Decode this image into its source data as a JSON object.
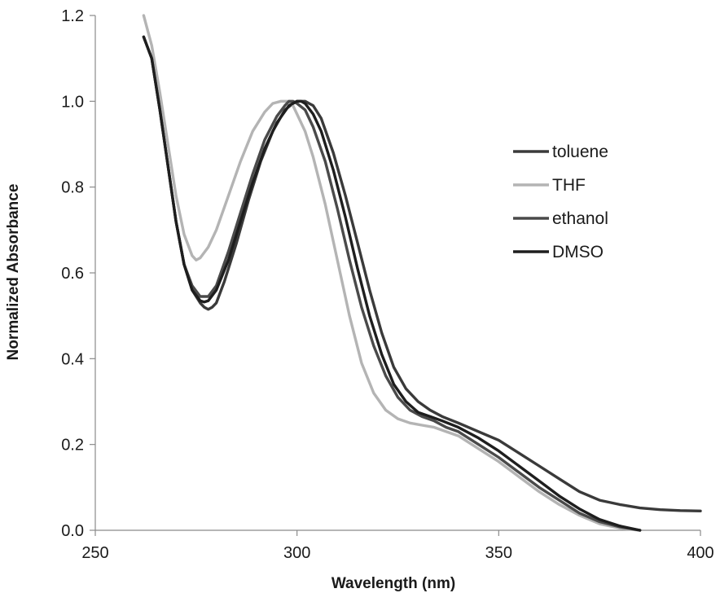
{
  "chart_data": {
    "type": "line",
    "xlabel": "Wavelength (nm)",
    "ylabel": "Normalized Absorbance",
    "xlim": [
      250,
      400
    ],
    "ylim": [
      0.0,
      1.2
    ],
    "x_ticks": [
      "250",
      "300",
      "350",
      "400"
    ],
    "y_ticks": [
      "0.0",
      "0.2",
      "0.4",
      "0.6",
      "0.8",
      "1.0",
      "1.2"
    ],
    "grid": false,
    "legend_position": "right",
    "series": [
      {
        "name": "toluene",
        "color": "#3a3a3a",
        "x": [
          262,
          264,
          266,
          268,
          270,
          272,
          274,
          276,
          277,
          278,
          279,
          280,
          282,
          285,
          288,
          291,
          294,
          297,
          299,
          300,
          301,
          302,
          303,
          304,
          306,
          309,
          312,
          315,
          318,
          321,
          324,
          327,
          330,
          333,
          336,
          340,
          345,
          350,
          355,
          360,
          365,
          370,
          375,
          380,
          385,
          390,
          395,
          400
        ],
        "y": [
          1.15,
          1.1,
          0.98,
          0.85,
          0.72,
          0.62,
          0.56,
          0.53,
          0.52,
          0.515,
          0.52,
          0.53,
          0.58,
          0.67,
          0.77,
          0.86,
          0.93,
          0.98,
          0.995,
          1.0,
          1.0,
          1.0,
          0.995,
          0.99,
          0.96,
          0.88,
          0.78,
          0.67,
          0.56,
          0.46,
          0.38,
          0.33,
          0.3,
          0.28,
          0.265,
          0.25,
          0.23,
          0.21,
          0.18,
          0.15,
          0.12,
          0.09,
          0.07,
          0.06,
          0.052,
          0.048,
          0.046,
          0.045
        ]
      },
      {
        "name": "THF",
        "color": "#b4b4b4",
        "x": [
          262,
          264,
          266,
          268,
          270,
          272,
          274,
          275,
          276,
          278,
          280,
          283,
          286,
          289,
          292,
          294,
          296,
          297,
          298,
          299,
          300,
          302,
          304,
          307,
          310,
          313,
          316,
          319,
          322,
          325,
          328,
          331,
          334,
          337,
          340,
          345,
          350,
          355,
          360,
          365,
          370,
          375,
          380,
          385
        ],
        "y": [
          1.2,
          1.13,
          1.02,
          0.9,
          0.78,
          0.69,
          0.64,
          0.63,
          0.635,
          0.66,
          0.7,
          0.78,
          0.86,
          0.93,
          0.975,
          0.995,
          1.0,
          1.0,
          1.0,
          0.99,
          0.97,
          0.93,
          0.87,
          0.76,
          0.63,
          0.5,
          0.39,
          0.32,
          0.28,
          0.26,
          0.25,
          0.245,
          0.24,
          0.23,
          0.22,
          0.19,
          0.16,
          0.125,
          0.09,
          0.06,
          0.035,
          0.015,
          0.005,
          0.0
        ]
      },
      {
        "name": "ethanol",
        "color": "#4a4a4a",
        "x": [
          262,
          264,
          266,
          268,
          270,
          272,
          274,
          276,
          278,
          280,
          283,
          286,
          289,
          292,
          295,
          297,
          298,
          299,
          300,
          302,
          304,
          307,
          310,
          313,
          316,
          319,
          322,
          325,
          328,
          331,
          334,
          337,
          340,
          345,
          350,
          355,
          360,
          365,
          370,
          375,
          380,
          385
        ],
        "y": [
          1.15,
          1.1,
          0.98,
          0.85,
          0.72,
          0.62,
          0.57,
          0.545,
          0.545,
          0.57,
          0.65,
          0.74,
          0.83,
          0.91,
          0.965,
          0.99,
          1.0,
          1.0,
          0.995,
          0.98,
          0.94,
          0.86,
          0.75,
          0.63,
          0.52,
          0.43,
          0.36,
          0.31,
          0.28,
          0.265,
          0.255,
          0.24,
          0.23,
          0.2,
          0.17,
          0.135,
          0.1,
          0.07,
          0.04,
          0.02,
          0.008,
          0.0
        ]
      },
      {
        "name": "DMSO",
        "color": "#1e1e1e",
        "x": [
          262,
          264,
          266,
          268,
          270,
          272,
          274,
          276,
          277,
          278,
          280,
          283,
          286,
          289,
          292,
          295,
          298,
          300,
          301,
          302,
          304,
          306,
          309,
          312,
          315,
          318,
          321,
          324,
          327,
          330,
          333,
          336,
          340,
          345,
          350,
          355,
          360,
          365,
          370,
          375,
          380,
          385
        ],
        "y": [
          1.15,
          1.1,
          0.98,
          0.85,
          0.72,
          0.62,
          0.56,
          0.535,
          0.532,
          0.535,
          0.56,
          0.63,
          0.72,
          0.81,
          0.89,
          0.95,
          0.99,
          1.0,
          1.0,
          0.995,
          0.97,
          0.93,
          0.84,
          0.73,
          0.61,
          0.5,
          0.41,
          0.34,
          0.3,
          0.275,
          0.265,
          0.255,
          0.24,
          0.215,
          0.185,
          0.15,
          0.115,
          0.08,
          0.05,
          0.025,
          0.01,
          0.0
        ]
      }
    ]
  }
}
